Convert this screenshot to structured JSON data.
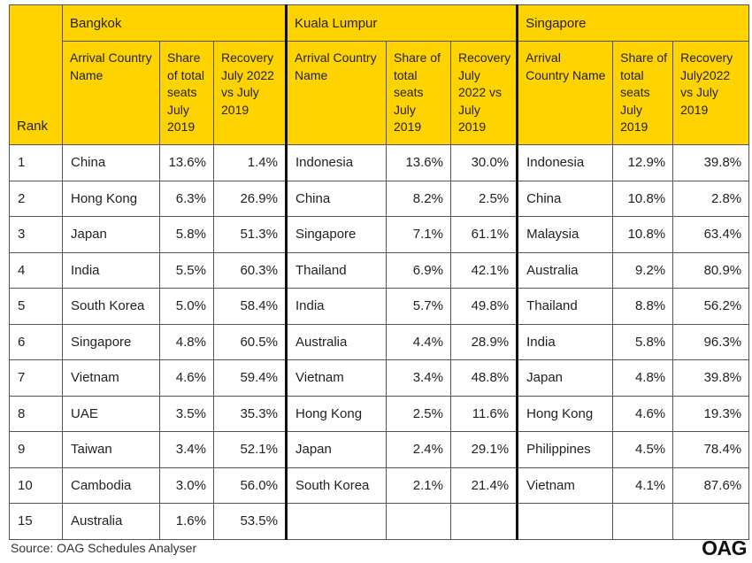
{
  "table": {
    "rank_header": "Rank",
    "cities": [
      "Bangkok",
      "Kuala Lumpur",
      "Singapore"
    ],
    "sub_headers": {
      "bangkok": [
        "Arrival Country Name",
        "Share of total seats July 2019",
        "Recovery July 2022 vs July 2019"
      ],
      "kuala_lumpur": [
        "Arrival Country Name",
        "Share of total seats July 2019",
        "Recovery July 2022 vs July 2019"
      ],
      "singapore": [
        "Arrival Country Name",
        "Share of total seats July 2019",
        "Recovery July2022 vs July 2019"
      ]
    },
    "rows": [
      {
        "rank": "1",
        "bkk": [
          "China",
          "13.6%",
          "1.4%"
        ],
        "kul": [
          "Indonesia",
          "13.6%",
          "30.0%"
        ],
        "sin": [
          "Indonesia",
          "12.9%",
          "39.8%"
        ]
      },
      {
        "rank": "2",
        "bkk": [
          "Hong Kong",
          "6.3%",
          "26.9%"
        ],
        "kul": [
          "China",
          "8.2%",
          "2.5%"
        ],
        "sin": [
          "China",
          "10.8%",
          "2.8%"
        ]
      },
      {
        "rank": "3",
        "bkk": [
          "Japan",
          "5.8%",
          "51.3%"
        ],
        "kul": [
          "Singapore",
          "7.1%",
          "61.1%"
        ],
        "sin": [
          "Malaysia",
          "10.8%",
          "63.4%"
        ]
      },
      {
        "rank": "4",
        "bkk": [
          "India",
          "5.5%",
          "60.3%"
        ],
        "kul": [
          "Thailand",
          "6.9%",
          "42.1%"
        ],
        "sin": [
          "Australia",
          "9.2%",
          "80.9%"
        ]
      },
      {
        "rank": "5",
        "bkk": [
          "South Korea",
          "5.0%",
          "58.4%"
        ],
        "kul": [
          "India",
          "5.7%",
          "49.8%"
        ],
        "sin": [
          "Thailand",
          "8.8%",
          "56.2%"
        ]
      },
      {
        "rank": "6",
        "bkk": [
          "Singapore",
          "4.8%",
          "60.5%"
        ],
        "kul": [
          "Australia",
          "4.4%",
          "28.9%"
        ],
        "sin": [
          "India",
          "5.8%",
          "96.3%"
        ]
      },
      {
        "rank": "7",
        "bkk": [
          "Vietnam",
          "4.6%",
          "59.4%"
        ],
        "kul": [
          "Vietnam",
          "3.4%",
          "48.8%"
        ],
        "sin": [
          "Japan",
          "4.8%",
          "39.8%"
        ]
      },
      {
        "rank": "8",
        "bkk": [
          "UAE",
          "3.5%",
          "35.3%"
        ],
        "kul": [
          "Hong Kong",
          "2.5%",
          "11.6%"
        ],
        "sin": [
          "Hong Kong",
          "4.6%",
          "19.3%"
        ]
      },
      {
        "rank": "9",
        "bkk": [
          "Taiwan",
          "3.4%",
          "52.1%"
        ],
        "kul": [
          "Japan",
          "2.4%",
          "29.1%"
        ],
        "sin": [
          "Philippines",
          "4.5%",
          "78.4%"
        ]
      },
      {
        "rank": "10",
        "bkk": [
          "Cambodia",
          "3.0%",
          "56.0%"
        ],
        "kul": [
          "South Korea",
          "2.1%",
          "21.4%"
        ],
        "sin": [
          "Vietnam",
          "4.1%",
          "87.6%"
        ]
      },
      {
        "rank": "15",
        "bkk": [
          "Australia",
          "1.6%",
          "53.5%"
        ],
        "kul": [
          "",
          "",
          ""
        ],
        "sin": [
          "",
          "",
          ""
        ]
      }
    ]
  },
  "footer": {
    "source": "Source: OAG Schedules Analyser",
    "logo": "OAG"
  },
  "colors": {
    "header_bg": "#FFD300",
    "border": "#555555",
    "divider": "#111111"
  }
}
